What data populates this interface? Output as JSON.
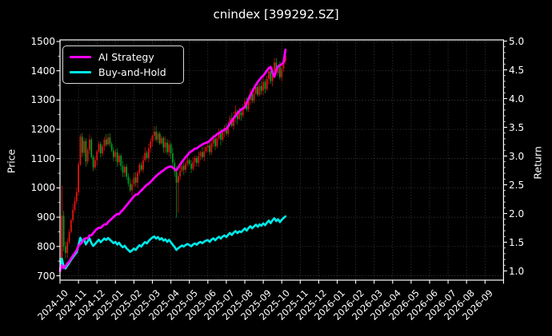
{
  "title": "cnindex [399292.SZ]",
  "legend": {
    "items": [
      {
        "label": "AI Strategy",
        "color": "#ff00ff"
      },
      {
        "label": "Buy-and-Hold",
        "color": "#00e8e8"
      }
    ]
  },
  "chart_data": {
    "type": "candlestick+line",
    "title": "cnindex [399292.SZ]",
    "x_axis": {
      "tick_labels": [
        "2024-10",
        "2024-11",
        "2024-12",
        "2025-01",
        "2025-02",
        "2025-03",
        "2025-04",
        "2025-05",
        "2025-06",
        "2025-07",
        "2025-08",
        "2025-09",
        "2025-10",
        "2025-11",
        "2025-12",
        "2026-01",
        "2026-02",
        "2026-03",
        "2026-04",
        "2026-05",
        "2026-06",
        "2026-07",
        "2026-08",
        "2026-09"
      ],
      "range_months": [
        0,
        24
      ],
      "data_span_months": 12.2,
      "grid": true
    },
    "left_axis": {
      "label": "Price",
      "ticks": [
        700,
        800,
        900,
        1000,
        1100,
        1200,
        1300,
        1400,
        1500
      ],
      "range": [
        680,
        1504
      ]
    },
    "right_axis": {
      "label": "Return",
      "ticks": [
        1.0,
        1.5,
        2.0,
        2.5,
        3.0,
        3.5,
        4.0,
        4.5,
        5.0
      ],
      "range": [
        0.84,
        5.02
      ]
    },
    "colors": {
      "up_candle": "#ee1414",
      "down_candle": "#00a324",
      "ai_line": "#ff00ff",
      "bh_line": "#00e8e8",
      "grid": "rgba(255,255,255,0.33)",
      "axis": "#ffffff",
      "background": "#000000"
    },
    "index_candles": {
      "note": "cnindex daily candles, Chinese convention: red = up day, green = down day",
      "months_step": 0.1,
      "first_open": 760,
      "closes": [
        745,
        905,
        800,
        778,
        815,
        850,
        890,
        925,
        955,
        985,
        1080,
        1175,
        1120,
        1160,
        1090,
        1130,
        1165,
        1105,
        1070,
        1095,
        1125,
        1150,
        1118,
        1142,
        1165,
        1148,
        1172,
        1150,
        1128,
        1105,
        1122,
        1088,
        1110,
        1075,
        1052,
        1072,
        1038,
        1015,
        992,
        1012,
        1035,
        1018,
        1052,
        1078,
        1062,
        1095,
        1120,
        1102,
        1135,
        1158,
        1178,
        1192,
        1165,
        1185,
        1152,
        1170,
        1138,
        1155,
        1122,
        1148,
        1118,
        1085,
        1055,
        1018,
        1040,
        1058,
        1075,
        1062,
        1082,
        1095,
        1082,
        1065,
        1088,
        1102,
        1085,
        1108,
        1122,
        1105,
        1125,
        1138,
        1145,
        1122,
        1152,
        1168,
        1142,
        1170,
        1188,
        1165,
        1192,
        1205,
        1185,
        1215,
        1238,
        1212,
        1242,
        1262,
        1235,
        1258,
        1248,
        1272,
        1295,
        1268,
        1302,
        1325,
        1298,
        1322,
        1345,
        1318,
        1348,
        1332,
        1362,
        1338,
        1372,
        1398,
        1365,
        1402,
        1428,
        1392,
        1415,
        1378,
        1408,
        1432,
        1452
      ],
      "wick_overrides": {
        "1": {
          "high": 1008,
          "low": 740
        },
        "63": {
          "low": 898
        },
        "64": {
          "low": 915
        },
        "122": {
          "high": 1468
        }
      }
    },
    "series": [
      {
        "name": "AI Strategy",
        "axis": "right",
        "months_step": 0.1,
        "returns": [
          1.0,
          1.1,
          1.05,
          1.08,
          1.13,
          1.16,
          1.22,
          1.27,
          1.31,
          1.36,
          1.44,
          1.47,
          1.5,
          1.55,
          1.57,
          1.57,
          1.62,
          1.62,
          1.66,
          1.7,
          1.73,
          1.75,
          1.75,
          1.78,
          1.81,
          1.81,
          1.85,
          1.88,
          1.91,
          1.94,
          1.97,
          1.99,
          1.99,
          2.03,
          2.06,
          2.1,
          2.14,
          2.18,
          2.22,
          2.26,
          2.3,
          2.33,
          2.33,
          2.37,
          2.4,
          2.43,
          2.47,
          2.5,
          2.52,
          2.55,
          2.58,
          2.62,
          2.65,
          2.68,
          2.7,
          2.73,
          2.75,
          2.78,
          2.8,
          2.81,
          2.82,
          2.8,
          2.77,
          2.75,
          2.8,
          2.85,
          2.9,
          2.94,
          2.98,
          3.02,
          3.06,
          3.08,
          3.1,
          3.13,
          3.13,
          3.16,
          3.18,
          3.2,
          3.22,
          3.23,
          3.24,
          3.27,
          3.3,
          3.33,
          3.35,
          3.38,
          3.4,
          3.42,
          3.44,
          3.46,
          3.47,
          3.52,
          3.57,
          3.61,
          3.66,
          3.7,
          3.74,
          3.78,
          3.81,
          3.83,
          3.85,
          3.92,
          3.99,
          4.06,
          4.12,
          4.18,
          4.24,
          4.29,
          4.33,
          4.37,
          4.4,
          4.44,
          4.49,
          4.53,
          4.55,
          4.45,
          4.38,
          4.5,
          4.56,
          4.58,
          4.6,
          4.63,
          4.85
        ],
        "final_return": 4.85
      },
      {
        "name": "Buy-and-Hold",
        "axis": "right",
        "derived": "index_candles.closes normalized by first close",
        "final_return": 1.95
      }
    ]
  }
}
